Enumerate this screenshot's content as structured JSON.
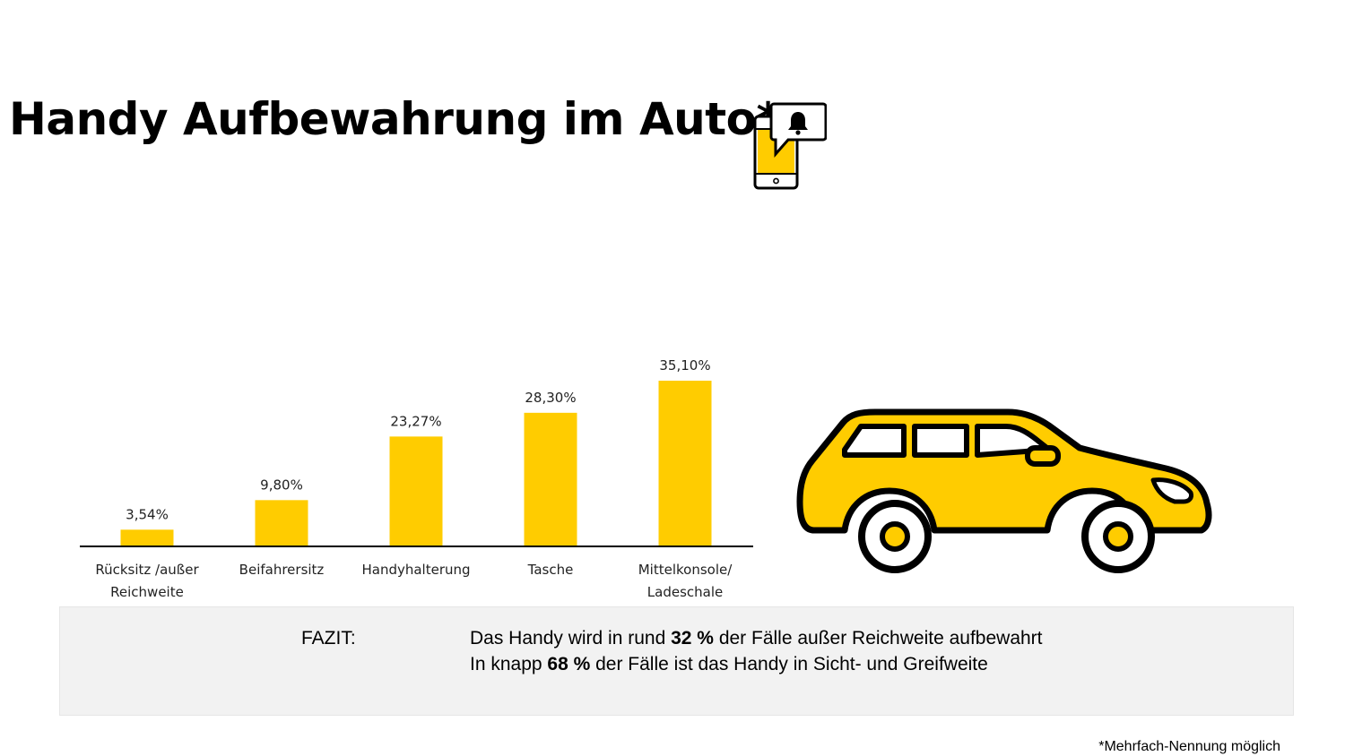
{
  "title": "Handy Aufbewahrung im Auto*",
  "icons": {
    "phone": "phone-notification-bell-icon",
    "car": "car-icon"
  },
  "colors": {
    "bar": "#FFCC00",
    "text": "#000000",
    "panel": "#F2F2F2"
  },
  "chart_data": {
    "type": "bar",
    "categories": [
      [
        "Rücksitz /außer",
        "Reichweite"
      ],
      [
        "Beifahrersitz"
      ],
      [
        "Handyhalterung"
      ],
      [
        "Tasche"
      ],
      [
        "Mittelkonsole/",
        "Ladeschale"
      ]
    ],
    "values": [
      3.54,
      9.8,
      23.27,
      28.3,
      35.1
    ],
    "value_labels": [
      "3,54%",
      "9,80%",
      "23,27%",
      "28,30%",
      "35,10%"
    ],
    "title": "",
    "xlabel": "",
    "ylabel": "",
    "ylim": [
      0,
      35.1
    ],
    "grid": false,
    "legend": "none"
  },
  "fazit": {
    "label": "FAZIT:",
    "line1": {
      "pre": "Das Handy wird in rund ",
      "bold": "32 %",
      "post": " der Fälle außer Reichweite aufbewahrt"
    },
    "line2": {
      "pre": "In knapp ",
      "bold": "68 %",
      "post": " der Fälle ist das Handy in Sicht- und Greifweite"
    }
  },
  "footnote": "*Mehrfach-Nennung möglich"
}
